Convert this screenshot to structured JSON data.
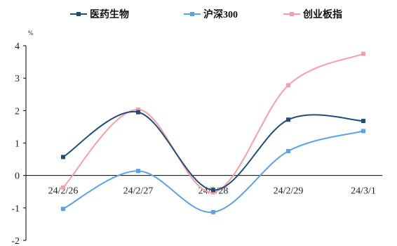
{
  "chart_data": {
    "type": "line",
    "title": "",
    "xlabel": "",
    "ylabel": "",
    "y_unit": "%",
    "categories": [
      "24/2/26",
      "24/2/27",
      "24/2/28",
      "24/2/29",
      "24/3/1"
    ],
    "series": [
      {
        "name": "医药生物",
        "color": "#1f4e79",
        "values": [
          0.57,
          1.95,
          -0.45,
          1.72,
          1.68
        ]
      },
      {
        "name": "沪深300",
        "color": "#5ba3e6",
        "values": [
          -1.03,
          0.14,
          -1.13,
          0.75,
          1.37
        ]
      },
      {
        "name": "创业板指",
        "color": "#f4a0a6",
        "values": [
          -0.37,
          2.03,
          -0.52,
          2.78,
          3.75
        ]
      }
    ],
    "y_ticks": [
      "4",
      "3",
      "2",
      "1",
      "0",
      "-1",
      "-2"
    ],
    "ylim": [
      -2,
      4
    ],
    "grid": false,
    "smooth": true,
    "legend_position": "top-center",
    "axis_color": "#000000"
  }
}
